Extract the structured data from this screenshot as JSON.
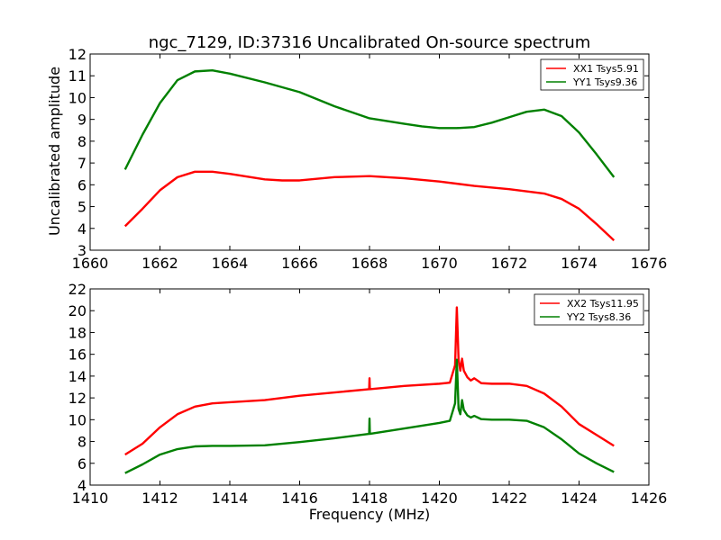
{
  "figure": {
    "title": "ngc_7129, ID:37316 Uncalibrated On-source spectrum",
    "ylabel_top": "Uncalibrated amplitude",
    "xlabel_bottom": "Frequency (MHz)"
  },
  "chart_data": [
    {
      "type": "line",
      "title": "ngc_7129, ID:37316 Uncalibrated On-source spectrum",
      "xlabel": "",
      "ylabel": "Uncalibrated amplitude",
      "xlim": [
        1660,
        1676
      ],
      "ylim": [
        3,
        12
      ],
      "xticks": [
        1660,
        1662,
        1664,
        1666,
        1668,
        1670,
        1672,
        1674,
        1676
      ],
      "yticks": [
        3,
        4,
        5,
        6,
        7,
        8,
        9,
        10,
        11,
        12
      ],
      "grid": false,
      "legend_position": "top-right",
      "series": [
        {
          "name": "XX1 Tsys5.91",
          "color": "#ff0000",
          "x": [
            1661.0,
            1661.5,
            1662.0,
            1662.5,
            1663.0,
            1663.5,
            1664.0,
            1665.0,
            1665.5,
            1666.0,
            1667.0,
            1668.0,
            1669.0,
            1670.0,
            1671.0,
            1672.0,
            1673.0,
            1673.5,
            1674.0,
            1674.5,
            1675.0
          ],
          "y": [
            4.1,
            4.9,
            5.75,
            6.35,
            6.6,
            6.6,
            6.5,
            6.25,
            6.2,
            6.2,
            6.35,
            6.4,
            6.3,
            6.15,
            5.95,
            5.8,
            5.6,
            5.35,
            4.9,
            4.2,
            3.45
          ]
        },
        {
          "name": "YY1 Tsys9.36",
          "color": "#008000",
          "x": [
            1661.0,
            1661.5,
            1662.0,
            1662.5,
            1663.0,
            1663.5,
            1664.0,
            1665.0,
            1666.0,
            1667.0,
            1668.0,
            1669.0,
            1669.5,
            1670.0,
            1670.5,
            1671.0,
            1671.5,
            1672.0,
            1672.5,
            1673.0,
            1673.5,
            1674.0,
            1674.5,
            1675.0
          ],
          "y": [
            6.7,
            8.3,
            9.75,
            10.8,
            11.2,
            11.25,
            11.1,
            10.7,
            10.25,
            9.6,
            9.05,
            8.8,
            8.68,
            8.6,
            8.6,
            8.65,
            8.85,
            9.1,
            9.35,
            9.45,
            9.15,
            8.4,
            7.4,
            6.35
          ]
        }
      ]
    },
    {
      "type": "line",
      "title": "",
      "xlabel": "Frequency (MHz)",
      "ylabel": "",
      "xlim": [
        1410,
        1426
      ],
      "ylim": [
        4,
        22
      ],
      "xticks": [
        1410,
        1412,
        1414,
        1416,
        1418,
        1420,
        1422,
        1424,
        1426
      ],
      "yticks": [
        4,
        6,
        8,
        10,
        12,
        14,
        16,
        18,
        20,
        22
      ],
      "grid": false,
      "legend_position": "top-right",
      "series": [
        {
          "name": "XX2 Tsys11.95",
          "color": "#ff0000",
          "x": [
            1411.0,
            1411.5,
            1412.0,
            1412.5,
            1413.0,
            1413.5,
            1414.0,
            1415.0,
            1416.0,
            1417.0,
            1417.99,
            1418.0,
            1418.01,
            1419.0,
            1420.0,
            1420.3,
            1420.45,
            1420.5,
            1420.55,
            1420.6,
            1420.65,
            1420.7,
            1420.8,
            1420.9,
            1421.0,
            1421.2,
            1421.5,
            1422.0,
            1422.5,
            1423.0,
            1423.5,
            1424.0,
            1424.5,
            1425.0
          ],
          "y": [
            6.8,
            7.8,
            9.3,
            10.5,
            11.2,
            11.5,
            11.6,
            11.8,
            12.2,
            12.5,
            12.8,
            13.8,
            12.8,
            13.1,
            13.3,
            13.4,
            15.0,
            20.3,
            15.5,
            14.5,
            15.6,
            14.5,
            13.9,
            13.6,
            13.8,
            13.35,
            13.3,
            13.3,
            13.1,
            12.4,
            11.2,
            9.6,
            8.6,
            7.6
          ],
          "mark": "spike"
        },
        {
          "name": "YY2 Tsys8.36",
          "color": "#008000",
          "x": [
            1411.0,
            1411.5,
            1412.0,
            1412.5,
            1413.0,
            1413.5,
            1414.0,
            1415.0,
            1416.0,
            1417.0,
            1417.99,
            1418.0,
            1418.01,
            1419.0,
            1420.0,
            1420.3,
            1420.45,
            1420.5,
            1420.55,
            1420.6,
            1420.65,
            1420.7,
            1420.8,
            1420.9,
            1421.0,
            1421.2,
            1421.5,
            1422.0,
            1422.5,
            1423.0,
            1423.5,
            1424.0,
            1424.5,
            1425.0
          ],
          "y": [
            5.1,
            5.9,
            6.8,
            7.3,
            7.55,
            7.6,
            7.6,
            7.65,
            7.95,
            8.3,
            8.7,
            10.1,
            8.7,
            9.2,
            9.7,
            9.9,
            11.5,
            15.5,
            11.0,
            10.5,
            11.8,
            10.9,
            10.4,
            10.2,
            10.35,
            10.05,
            10.0,
            10.0,
            9.9,
            9.3,
            8.2,
            6.9,
            6.0,
            5.2
          ]
        }
      ]
    }
  ]
}
